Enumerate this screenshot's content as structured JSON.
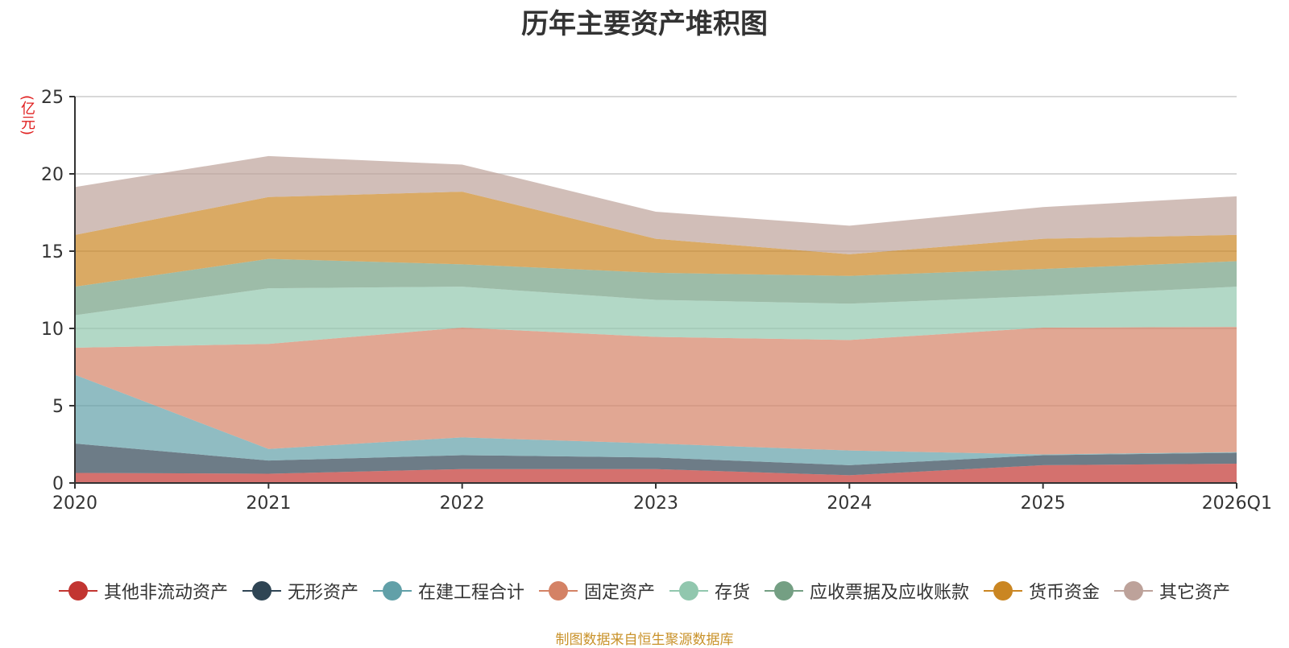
{
  "chart_data": {
    "type": "area",
    "stacked": true,
    "title": "历年主要资产堆积图",
    "ylabel": "(亿元)",
    "xlabel": "",
    "categories": [
      "2020",
      "2021",
      "2022",
      "2023",
      "2024",
      "2025",
      "2026Q1"
    ],
    "ylim": [
      0,
      25
    ],
    "yticks": [
      0,
      5,
      10,
      15,
      20,
      25
    ],
    "grid": true,
    "legend_position": "bottom",
    "series": [
      {
        "name": "其他非流动资产",
        "color": "#c23531",
        "values": [
          0.65,
          0.6,
          0.9,
          0.9,
          0.5,
          1.15,
          1.25
        ]
      },
      {
        "name": "无形资产",
        "color": "#2f4554",
        "values": [
          1.9,
          0.85,
          0.9,
          0.75,
          0.65,
          0.65,
          0.7
        ]
      },
      {
        "name": "在建工程合计",
        "color": "#61a0a8",
        "values": [
          4.45,
          0.75,
          1.15,
          0.9,
          0.95,
          0.05,
          0.05
        ]
      },
      {
        "name": "固定资产",
        "color": "#d48265",
        "values": [
          1.75,
          6.8,
          7.1,
          6.9,
          7.15,
          8.2,
          8.1
        ]
      },
      {
        "name": "存货",
        "color": "#91c7ae",
        "values": [
          2.1,
          3.6,
          2.65,
          2.4,
          2.35,
          2.05,
          2.6
        ]
      },
      {
        "name": "应收票据及应收账款",
        "color": "#749f83",
        "values": [
          1.85,
          1.9,
          1.45,
          1.75,
          1.8,
          1.75,
          1.65
        ]
      },
      {
        "name": "货币资金",
        "color": "#ca8622",
        "values": [
          3.35,
          4.0,
          4.7,
          2.2,
          1.4,
          1.95,
          1.7
        ]
      },
      {
        "name": "其它资产",
        "color": "#bda29a",
        "values": [
          3.1,
          2.65,
          1.75,
          1.75,
          1.85,
          2.05,
          2.5
        ]
      }
    ]
  },
  "source_note": "制图数据来自恒生聚源数据库"
}
